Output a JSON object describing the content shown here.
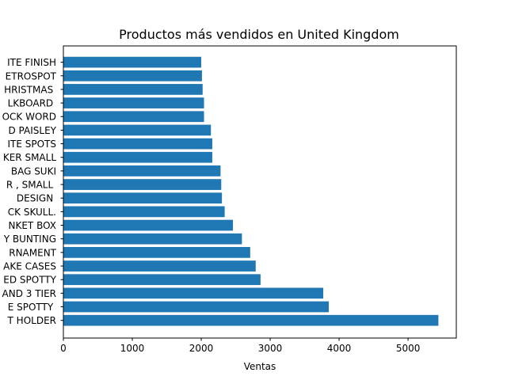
{
  "chart_data": {
    "type": "bar",
    "orientation": "horizontal",
    "title": "Productos más vendidos en United Kingdom",
    "xlabel": "Ventas",
    "ylabel": "",
    "xlim": [
      0,
      5700
    ],
    "xticks": [
      0,
      1000,
      2000,
      3000,
      4000,
      5000
    ],
    "grid": false,
    "bar_color": "#1f77b4",
    "categories": [
      "T HOLDER",
      "E SPOTTY ",
      "AND 3 TIER",
      "ED SPOTTY",
      "AKE CASES",
      "RNAMENT",
      "Y BUNTING",
      "NKET BOX",
      "CK SKULL.",
      "  DESIGN ",
      "R , SMALL ",
      " BAG SUKI",
      "KER SMALL",
      "ITE SPOTS",
      "D PAISLEY",
      "OCK WORD",
      "LKBOARD ",
      "HRISTMAS ",
      "ETROSPOT",
      "ITE FINISH"
    ],
    "values": [
      5440,
      3850,
      3770,
      2860,
      2790,
      2710,
      2590,
      2460,
      2340,
      2300,
      2290,
      2280,
      2160,
      2160,
      2140,
      2040,
      2040,
      2020,
      2010,
      2000
    ]
  }
}
